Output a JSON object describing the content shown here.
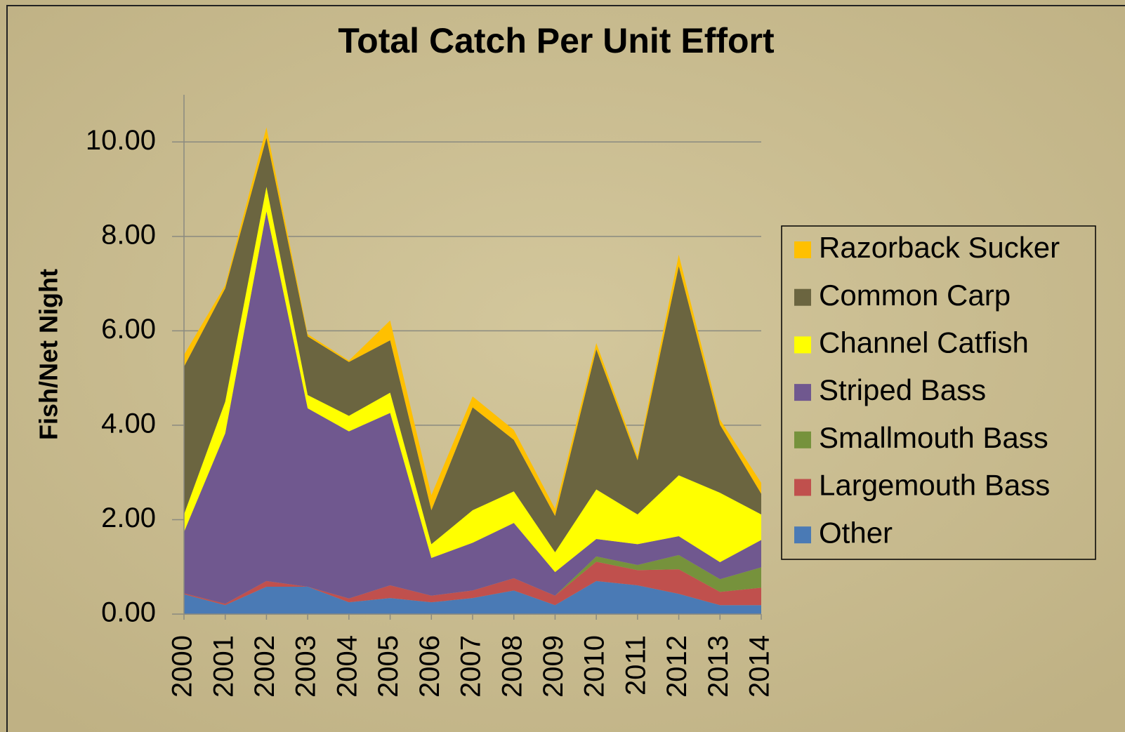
{
  "chart_data": {
    "type": "stacked_area",
    "title": "Total Catch Per Unit Effort",
    "y_label": "Fish/Net Night",
    "categories": [
      "2000",
      "2001",
      "2002",
      "2003",
      "2004",
      "2005",
      "2006",
      "2007",
      "2008",
      "2009",
      "2010",
      "2011",
      "2012",
      "2013",
      "2014"
    ],
    "series": [
      {
        "name": "Other",
        "color": "#4a7ab5",
        "values": [
          0.42,
          0.19,
          0.58,
          0.58,
          0.25,
          0.34,
          0.25,
          0.34,
          0.5,
          0.19,
          0.7,
          0.61,
          0.43,
          0.19,
          0.19
        ]
      },
      {
        "name": "Largemouth Bass",
        "color": "#c0504d",
        "values": [
          0.02,
          0.03,
          0.12,
          0,
          0.08,
          0.27,
          0.14,
          0.16,
          0.26,
          0.2,
          0.41,
          0.32,
          0.52,
          0.28,
          0.37
        ]
      },
      {
        "name": "Smallmouth Bass",
        "color": "#76923c",
        "values": [
          0,
          0,
          0,
          0,
          0,
          0,
          0,
          0,
          0,
          0,
          0.11,
          0.11,
          0.3,
          0.27,
          0.43
        ]
      },
      {
        "name": "Striped Bass",
        "color": "#70588f",
        "values": [
          1.3,
          3.61,
          7.83,
          3.78,
          3.54,
          3.65,
          0.8,
          1.01,
          1.17,
          0.5,
          0.37,
          0.44,
          0.4,
          0.36,
          0.58
        ]
      },
      {
        "name": "Channel Catfish",
        "color": "#ffff00",
        "values": [
          0.37,
          0.67,
          0.52,
          0.28,
          0.33,
          0.43,
          0.29,
          0.69,
          0.67,
          0.42,
          1.05,
          0.63,
          1.29,
          1.47,
          0.54
        ]
      },
      {
        "name": "Common Carp",
        "color": "#6b6540",
        "values": [
          3.13,
          2.4,
          1.04,
          1.24,
          1.14,
          1.11,
          0.72,
          2.18,
          1.09,
          0.77,
          2.97,
          1.15,
          4.43,
          1.44,
          0.44
        ]
      },
      {
        "name": "Razorback Sucker",
        "color": "#ffc000",
        "values": [
          0.25,
          0.07,
          0.22,
          0.05,
          0.03,
          0.42,
          0.32,
          0.23,
          0.21,
          0.15,
          0.13,
          0.08,
          0.24,
          0.11,
          0.23
        ]
      }
    ],
    "ylim": [
      0,
      11
    ],
    "yticks": [
      {
        "value": 0,
        "label": "0.00"
      },
      {
        "value": 2,
        "label": "2.00"
      },
      {
        "value": 4,
        "label": "4.00"
      },
      {
        "value": 6,
        "label": "6.00"
      },
      {
        "value": 8,
        "label": "8.00"
      },
      {
        "value": 10,
        "label": "10.00"
      }
    ],
    "grid": true,
    "legend": "right"
  }
}
